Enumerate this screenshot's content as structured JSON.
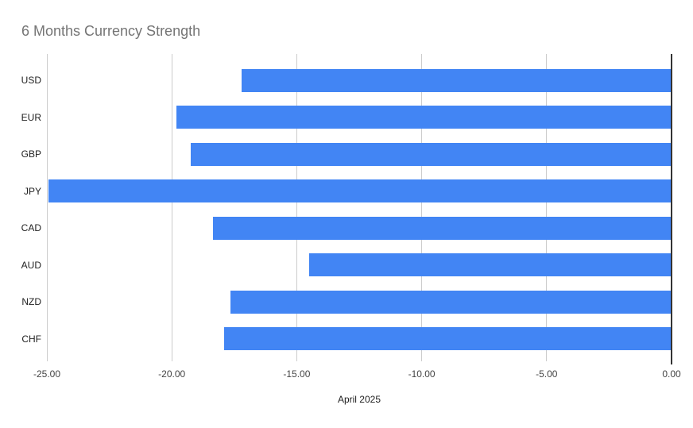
{
  "title": "6 Months Currency Strength",
  "colors": {
    "bar": "#4285F4",
    "title_text": "#757575",
    "gridline": "#cccccc",
    "zero_baseline": "#333333",
    "tick_label": "#444444",
    "category_label": "#222222",
    "background": "#ffffff"
  },
  "chart_data": {
    "type": "bar",
    "orientation": "horizontal",
    "title": "6 Months Currency Strength",
    "categories": [
      "USD",
      "EUR",
      "GBP",
      "JPY",
      "CAD",
      "AUD",
      "NZD",
      "CHF"
    ],
    "values": [
      -17.2,
      -19.8,
      -19.25,
      -24.95,
      -18.35,
      -14.5,
      -17.65,
      -17.9
    ],
    "xlabel": "April 2025",
    "ylabel": "",
    "xlim": [
      -25,
      0
    ],
    "x_tick_values": [
      -25,
      -20,
      -15,
      -10,
      -5,
      0
    ],
    "x_tick_labels": [
      "-25.00",
      "-20.00",
      "-15.00",
      "-10.00",
      "-5.00",
      "0.00"
    ],
    "grid": "vertical-only",
    "legend": "none",
    "bar_color": "#4285F4"
  }
}
